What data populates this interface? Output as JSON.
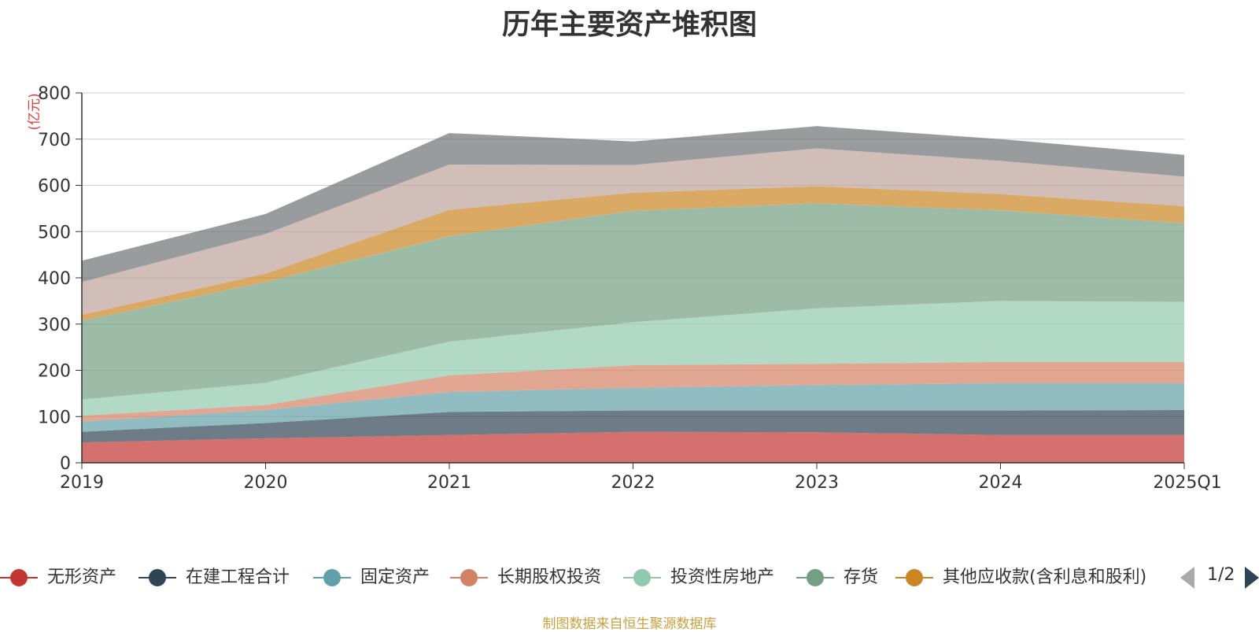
{
  "chart_data": {
    "type": "area",
    "title": "历年主要资产堆积图",
    "ylabel": "(亿元)",
    "categories": [
      "2019",
      "2020",
      "2021",
      "2022",
      "2023",
      "2024",
      "2025Q1"
    ],
    "ylim": [
      0,
      800
    ],
    "yticks": [
      0,
      100,
      200,
      300,
      400,
      500,
      600,
      700,
      800
    ],
    "stacked": true,
    "grid": true,
    "legend_position": "bottom",
    "series": [
      {
        "name": "无形资产",
        "color": "#c23531",
        "values": [
          44,
          53,
          60,
          67,
          66,
          60,
          60
        ]
      },
      {
        "name": "在建工程合计",
        "color": "#2f4554",
        "values": [
          23,
          33,
          50,
          46,
          47,
          53,
          54
        ]
      },
      {
        "name": "固定资产",
        "color": "#61a0a8",
        "values": [
          22,
          28,
          43,
          49,
          55,
          59,
          58
        ]
      },
      {
        "name": "长期股权投资",
        "color": "#d48265",
        "values": [
          13,
          11,
          36,
          49,
          46,
          46,
          46
        ]
      },
      {
        "name": "投资性房地产",
        "color": "#91c7ae",
        "values": [
          35,
          48,
          73,
          93,
          120,
          132,
          130
        ]
      },
      {
        "name": "存货",
        "color": "#749f83",
        "values": [
          170,
          218,
          228,
          241,
          227,
          196,
          170
        ]
      },
      {
        "name": "其他应收款(含利息和股利)",
        "color": "#ca8622",
        "values": [
          13,
          18,
          57,
          39,
          37,
          35,
          37
        ]
      },
      {
        "name": "",
        "color": "#bda29a",
        "values": [
          71,
          86,
          98,
          60,
          82,
          72,
          64
        ]
      },
      {
        "name": "",
        "color": "#6e7074",
        "values": [
          46,
          43,
          68,
          51,
          48,
          47,
          47
        ]
      }
    ]
  },
  "legend": {
    "items": [
      {
        "label": "无形资产",
        "color": "#c23531"
      },
      {
        "label": "在建工程合计",
        "color": "#2f4554"
      },
      {
        "label": "固定资产",
        "color": "#61a0a8"
      },
      {
        "label": "长期股权投资",
        "color": "#d48265"
      },
      {
        "label": "投资性房地产",
        "color": "#91c7ae"
      },
      {
        "label": "存货",
        "color": "#749f83"
      },
      {
        "label": "其他应收款(含利息和股利)",
        "color": "#ca8622"
      }
    ],
    "page_text": "1/2"
  },
  "source": "制图数据来自恒生聚源数据库"
}
